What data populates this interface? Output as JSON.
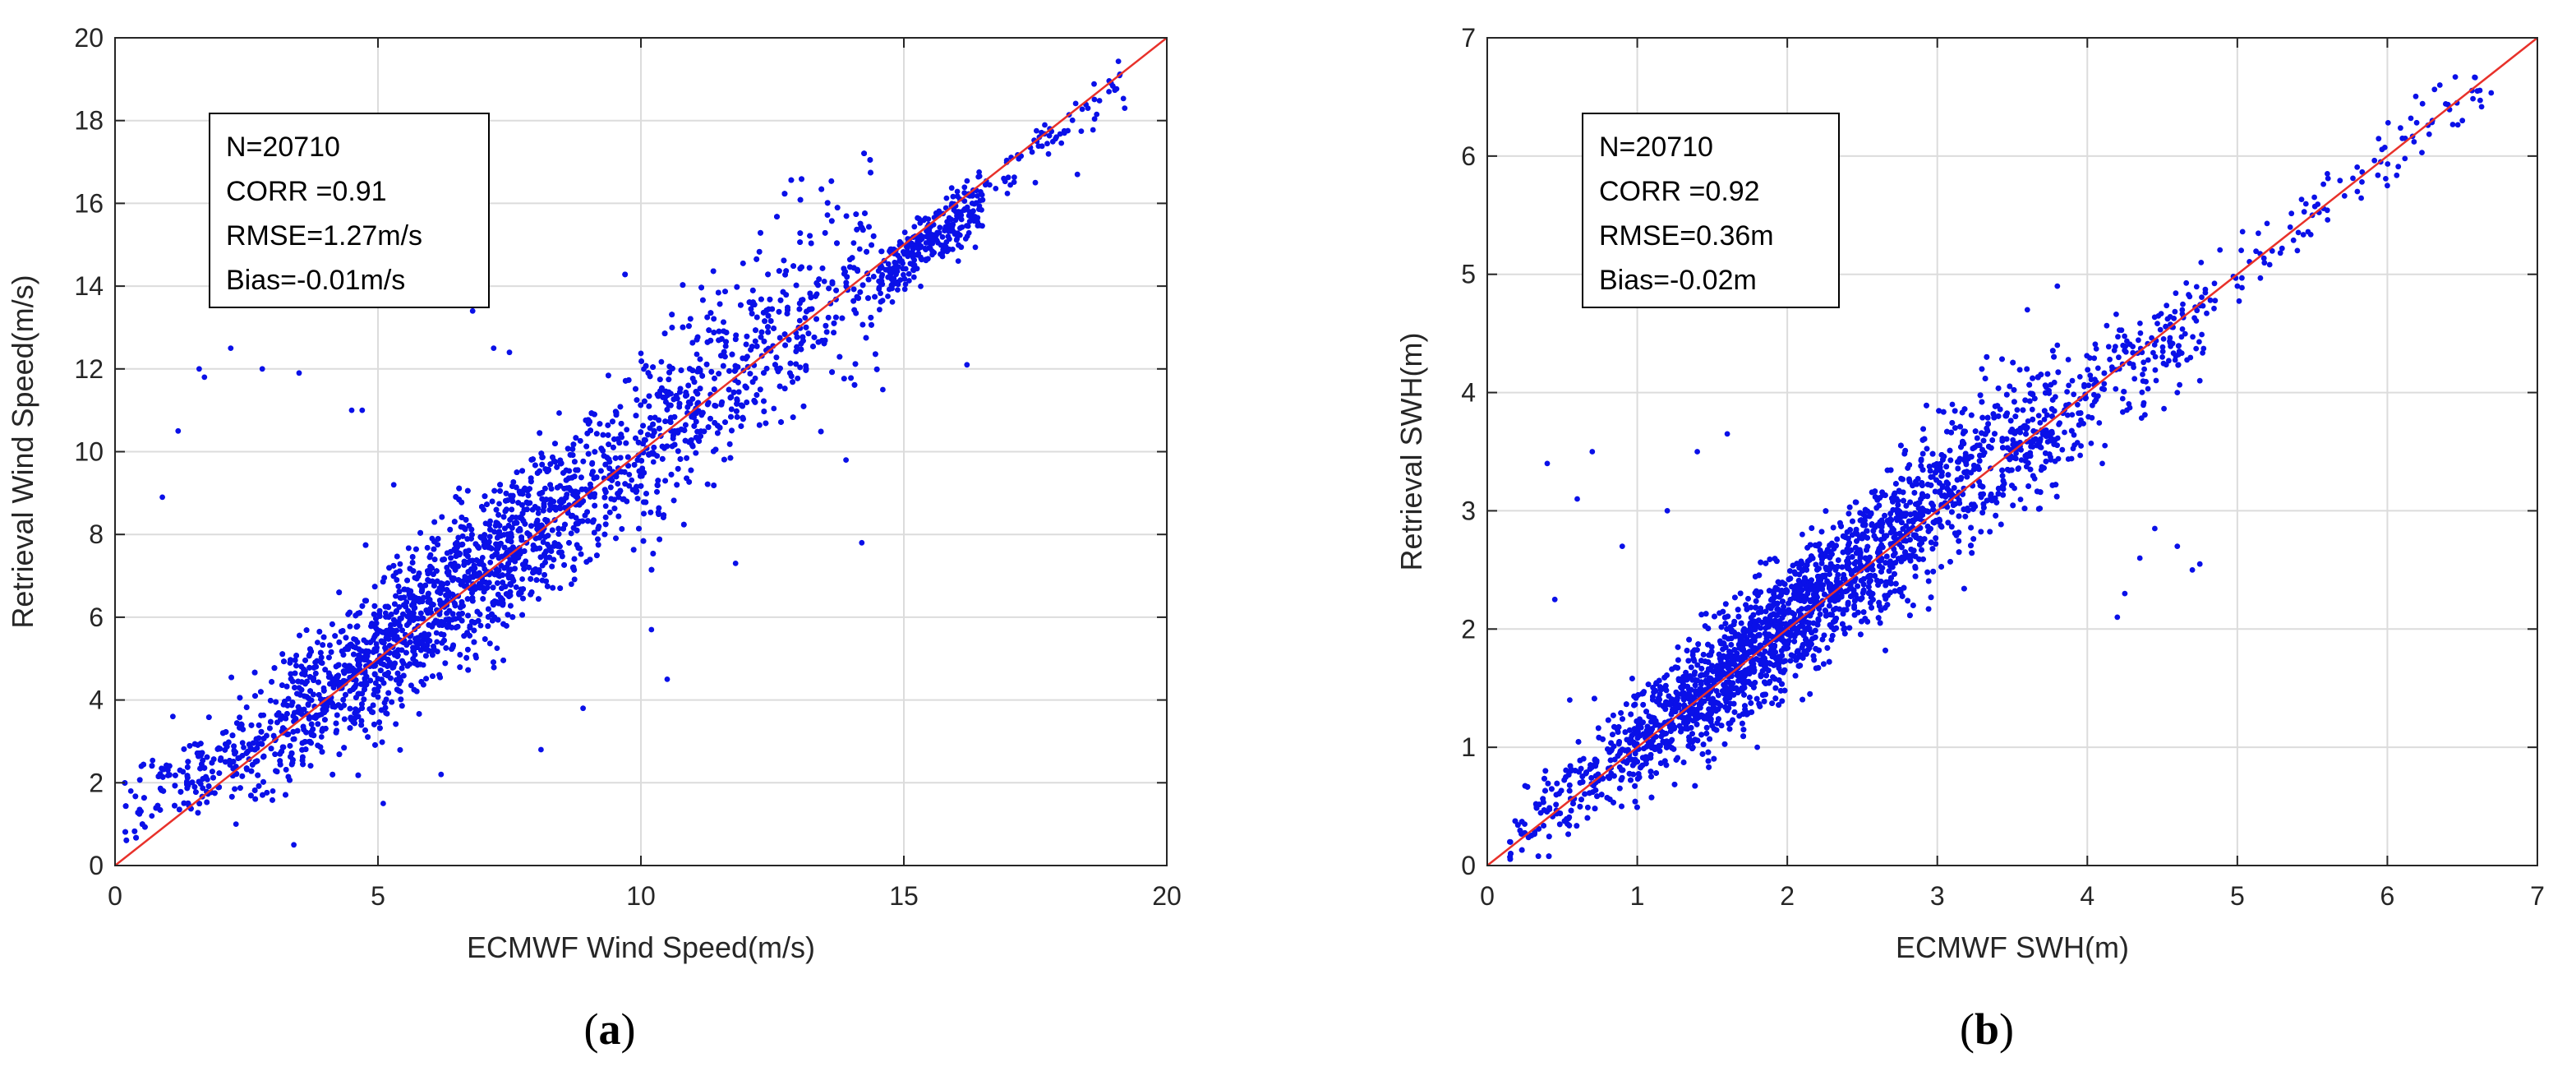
{
  "chart_data": [
    {
      "type": "scatter",
      "panel_caption": {
        "open": "(",
        "letter": "a",
        "close": ")"
      },
      "xlabel": "ECMWF Wind Speed(m/s)",
      "ylabel": "Retrieval Wind Speed(m/s)",
      "xlim": [
        0,
        20
      ],
      "ylim": [
        0,
        20
      ],
      "xticks": [
        0,
        5,
        10,
        15,
        20
      ],
      "yticks": [
        0,
        2,
        4,
        6,
        8,
        10,
        12,
        14,
        16,
        18,
        20
      ],
      "xtick_labels": [
        "0",
        "5",
        "10",
        "15",
        "20"
      ],
      "ytick_labels": [
        "0",
        "2",
        "4",
        "6",
        "8",
        "10",
        "12",
        "14",
        "16",
        "18",
        "20"
      ],
      "grid": true,
      "reference_line": {
        "name": "1:1 line",
        "color": "#e8312a"
      },
      "series_color": "#0a10e8",
      "stats": [
        "N=20710",
        "CORR =0.91",
        "RMSE=1.27m/s",
        "Bias=-0.01m/s"
      ],
      "sample_points": [
        [
          0.3,
          1.8
        ],
        [
          0.5,
          2.4
        ],
        [
          0.7,
          1.2
        ],
        [
          0.9,
          8.9
        ],
        [
          1.1,
          3.6
        ],
        [
          1.2,
          10.5
        ],
        [
          1.6,
          12.0
        ],
        [
          1.7,
          11.8
        ],
        [
          2.2,
          12.5
        ],
        [
          2.8,
          12.0
        ],
        [
          3.5,
          11.9
        ],
        [
          4.5,
          11.0
        ],
        [
          4.7,
          11.0
        ],
        [
          5.3,
          9.2
        ],
        [
          6.6,
          13.8
        ],
        [
          6.8,
          13.4
        ],
        [
          7.2,
          12.5
        ],
        [
          7.5,
          12.4
        ],
        [
          2.3,
          1.0
        ],
        [
          3.0,
          1.8
        ],
        [
          3.4,
          0.5
        ],
        [
          5.1,
          1.5
        ],
        [
          6.2,
          2.2
        ],
        [
          8.1,
          2.8
        ],
        [
          8.9,
          3.8
        ],
        [
          10.5,
          4.5
        ],
        [
          10.2,
          5.7
        ],
        [
          11.8,
          7.3
        ],
        [
          13.9,
          9.8
        ],
        [
          14.2,
          7.8
        ],
        [
          14.6,
          11.5
        ],
        [
          16.2,
          12.1
        ],
        [
          16.3,
          16.0
        ],
        [
          16.9,
          16.6
        ],
        [
          17.5,
          16.5
        ],
        [
          17.9,
          17.6
        ],
        [
          18.3,
          16.7
        ],
        [
          18.5,
          18.3
        ],
        [
          18.9,
          18.7
        ],
        [
          19.2,
          18.3
        ]
      ]
    },
    {
      "type": "scatter",
      "panel_caption": {
        "open": "(",
        "letter": "b",
        "close": ")"
      },
      "xlabel": "ECMWF SWH(m)",
      "ylabel": "Retrieval SWH(m)",
      "xlim": [
        0,
        7
      ],
      "ylim": [
        0,
        7
      ],
      "xticks": [
        0,
        1,
        2,
        3,
        4,
        5,
        6,
        7
      ],
      "yticks": [
        0,
        1,
        2,
        3,
        4,
        5,
        6,
        7
      ],
      "xtick_labels": [
        "0",
        "1",
        "2",
        "3",
        "4",
        "5",
        "6",
        "7"
      ],
      "ytick_labels": [
        "0",
        "1",
        "2",
        "3",
        "4",
        "5",
        "6",
        "7"
      ],
      "grid": true,
      "reference_line": {
        "name": "1:1 line",
        "color": "#e8312a"
      },
      "series_color": "#0a10e8",
      "stats": [
        "N=20710",
        "CORR =0.92",
        "RMSE=0.36m",
        "Bias=-0.02m"
      ],
      "sample_points": [
        [
          0.15,
          0.2
        ],
        [
          0.25,
          0.35
        ],
        [
          0.4,
          3.4
        ],
        [
          0.45,
          2.25
        ],
        [
          0.6,
          3.1
        ],
        [
          0.7,
          3.5
        ],
        [
          0.55,
          1.4
        ],
        [
          0.9,
          2.7
        ],
        [
          1.2,
          3.0
        ],
        [
          1.4,
          3.5
        ],
        [
          1.6,
          3.65
        ],
        [
          3.1,
          3.9
        ],
        [
          3.6,
          4.7
        ],
        [
          3.8,
          4.4
        ],
        [
          3.8,
          4.9
        ],
        [
          3.9,
          4.1
        ],
        [
          4.1,
          3.4
        ],
        [
          4.2,
          2.1
        ],
        [
          4.25,
          2.3
        ],
        [
          4.35,
          2.6
        ],
        [
          4.45,
          2.85
        ],
        [
          4.6,
          2.7
        ],
        [
          4.7,
          2.5
        ],
        [
          4.75,
          2.55
        ],
        [
          4.5,
          4.3
        ],
        [
          4.6,
          4.0
        ],
        [
          4.75,
          4.1
        ],
        [
          5.0,
          4.9
        ],
        [
          5.4,
          5.2
        ],
        [
          5.6,
          5.85
        ],
        [
          5.8,
          5.7
        ],
        [
          6.0,
          5.75
        ],
        [
          6.1,
          6.15
        ],
        [
          6.3,
          6.3
        ],
        [
          6.35,
          6.6
        ],
        [
          6.5,
          6.3
        ],
        [
          6.6,
          6.55
        ],
        [
          5.5,
          5.5
        ],
        [
          2.1,
          2.8
        ],
        [
          1.8,
          1.0
        ]
      ]
    }
  ]
}
